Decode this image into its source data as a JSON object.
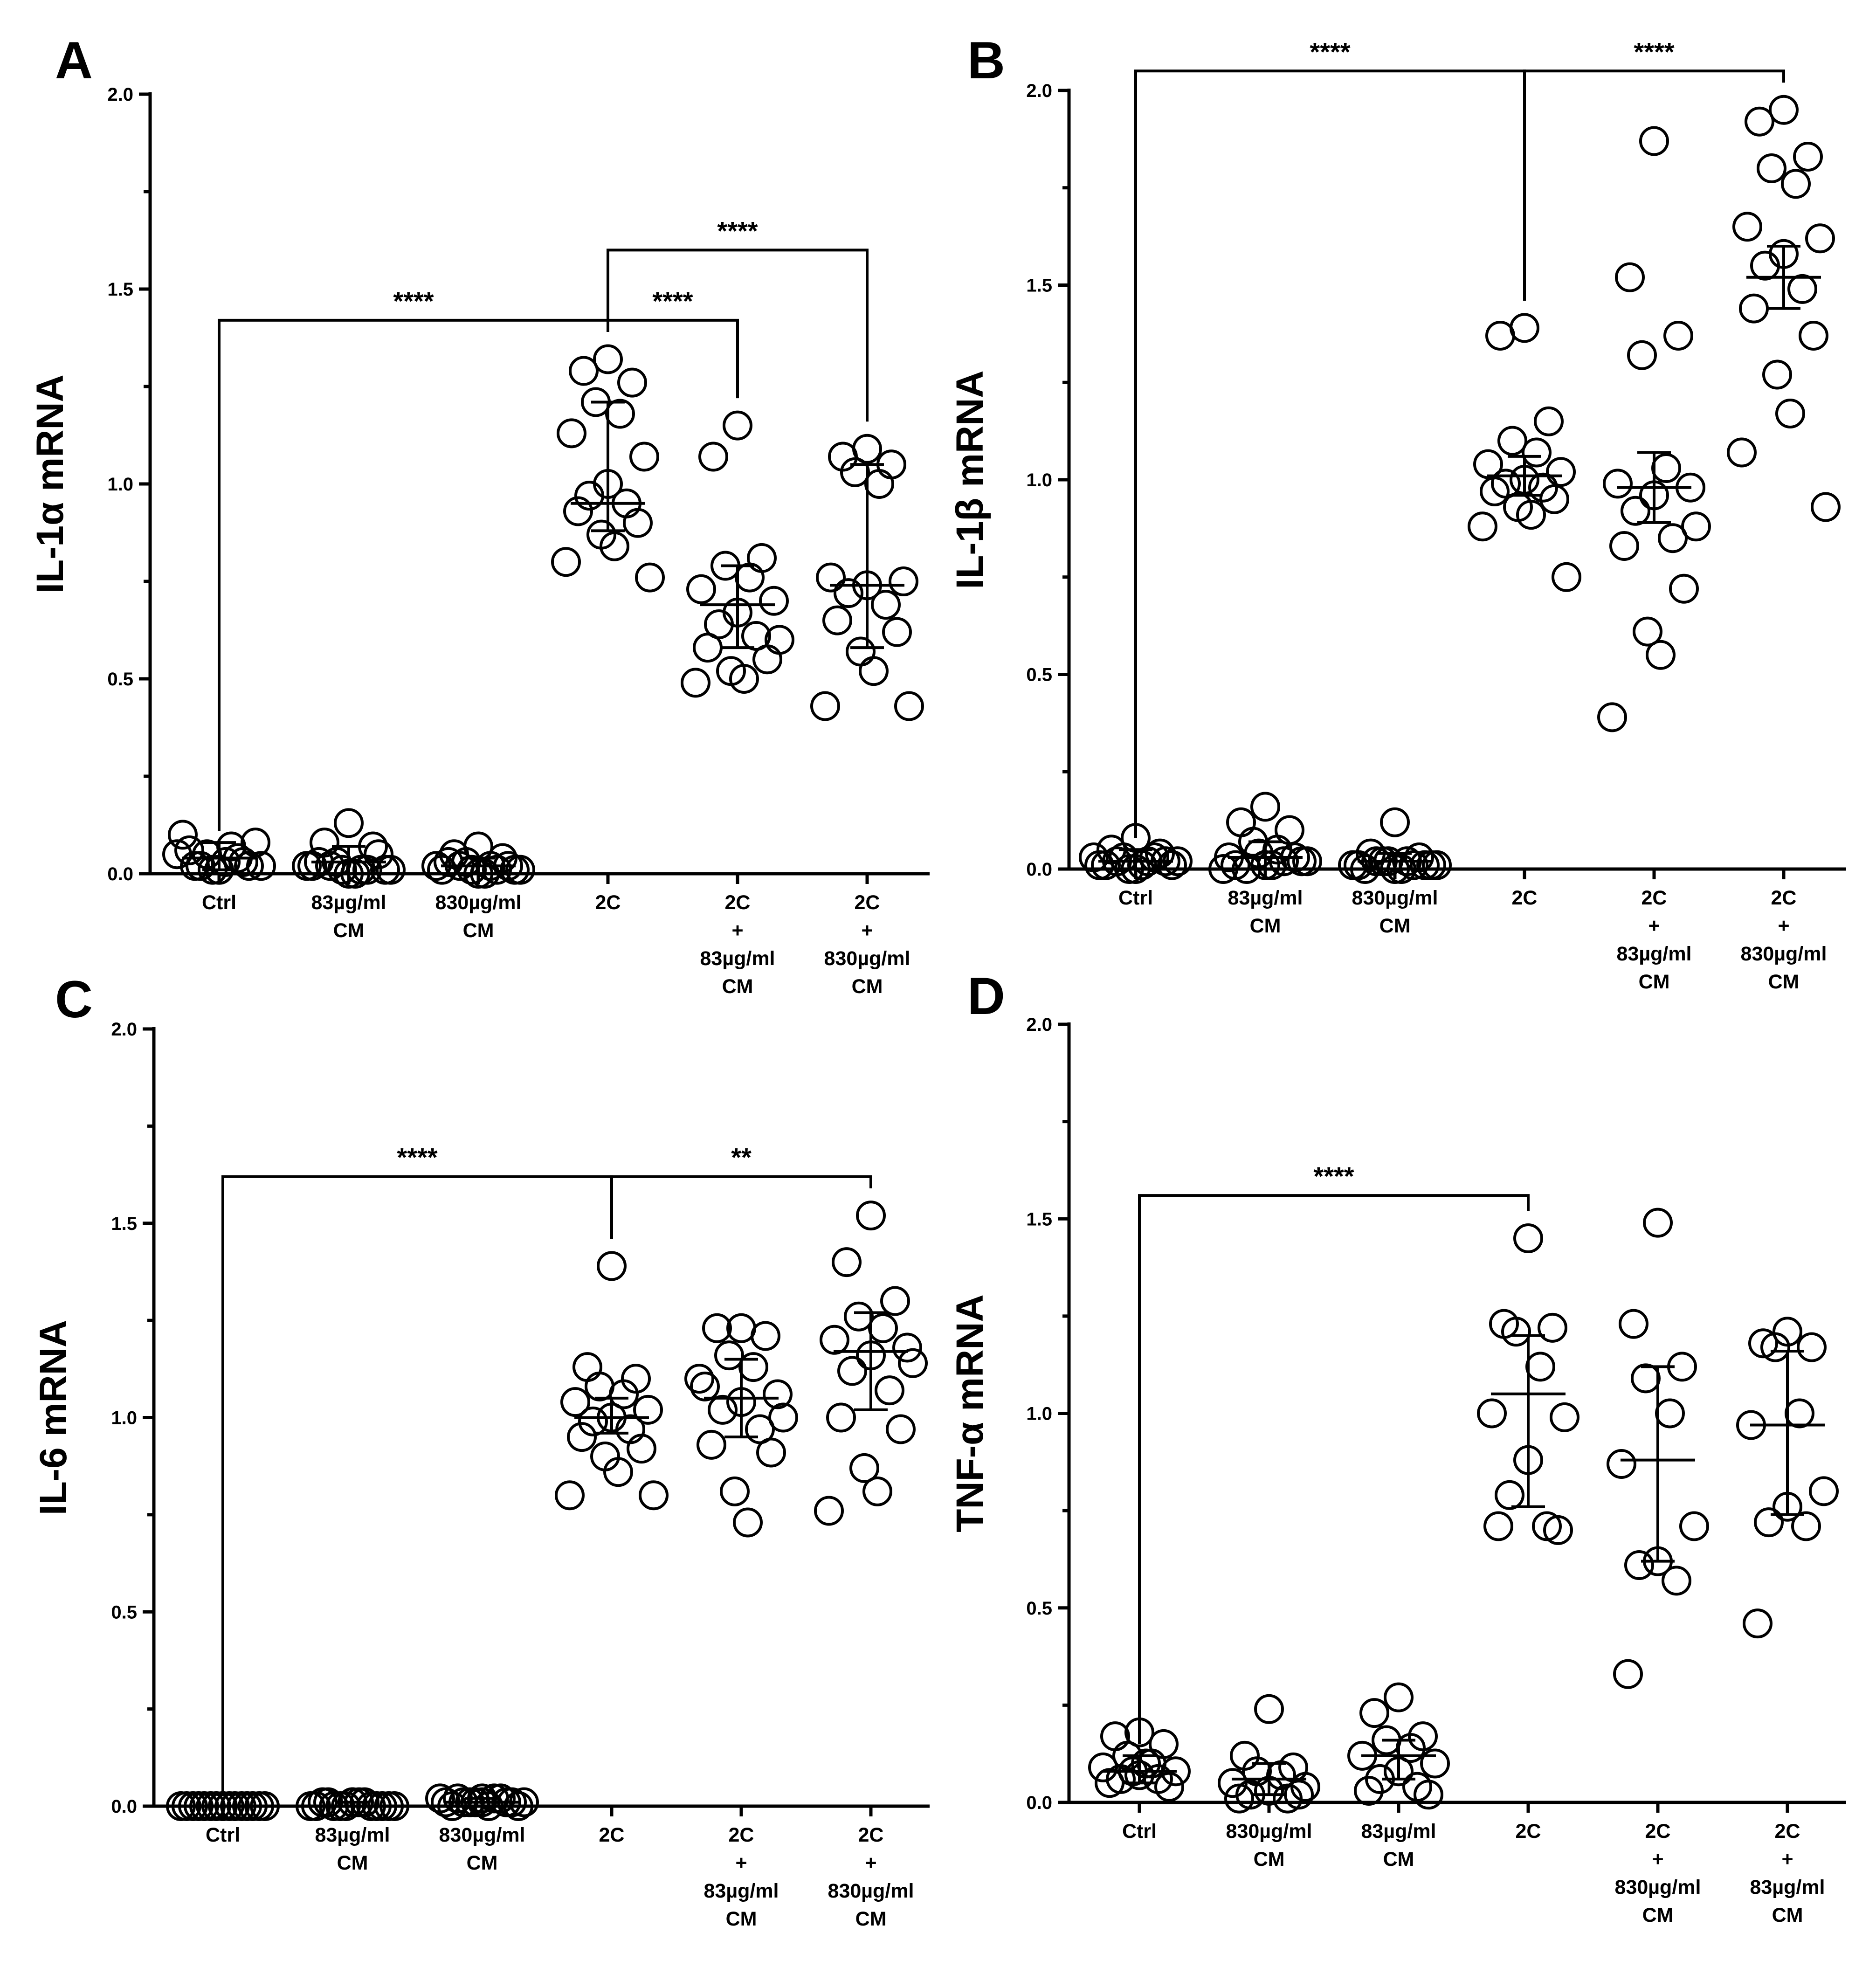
{
  "chart_data": [
    {
      "type": "scatter",
      "panel_label": "A",
      "ylabel": "IL-1α mRNA",
      "ylim": [
        0,
        2.0
      ],
      "yticks": [
        "0.0",
        "0.5",
        "1.0",
        "1.5",
        "2.0"
      ],
      "categories": [
        {
          "lines": [
            "Ctrl"
          ],
          "mean": 0.04,
          "err": [
            0.01,
            0.08
          ],
          "points": [
            0.01,
            0.02,
            0.03,
            0.05,
            0.07,
            0.1,
            0.08,
            0.01,
            0.02,
            0.04,
            0.06,
            0.02,
            0.01,
            0.03,
            0.05,
            0.02
          ]
        },
        {
          "lines": [
            "83µg/ml",
            "CM"
          ],
          "mean": 0.03,
          "err": [
            0.0,
            0.07
          ],
          "points": [
            0.13,
            0.08,
            0.07,
            0.03,
            0.01,
            0.02,
            0.01,
            0.0,
            0.02,
            0.01,
            0.03,
            0.05,
            0.01,
            0.0,
            0.02,
            0.01
          ]
        },
        {
          "lines": [
            "830µg/ml",
            "CM"
          ],
          "mean": 0.02,
          "err": [
            0.0,
            0.04
          ],
          "points": [
            0.07,
            0.05,
            0.04,
            0.03,
            0.02,
            0.01,
            0.01,
            0.0,
            0.02,
            0.01,
            0.03,
            0.02,
            0.01,
            0.0,
            0.02,
            0.01
          ]
        },
        {
          "lines": [
            "2C"
          ],
          "mean": 0.95,
          "err": [
            0.88,
            1.21
          ],
          "points": [
            1.32,
            1.29,
            1.26,
            1.21,
            1.18,
            1.13,
            1.07,
            1.0,
            0.97,
            0.95,
            0.93,
            0.9,
            0.87,
            0.84,
            0.8,
            0.76
          ]
        },
        {
          "lines": [
            "2C",
            "+",
            "83µg/ml",
            "CM"
          ],
          "mean": 0.69,
          "err": [
            0.58,
            0.79
          ],
          "points": [
            1.15,
            1.07,
            0.81,
            0.79,
            0.76,
            0.73,
            0.7,
            0.67,
            0.64,
            0.61,
            0.58,
            0.55,
            0.52,
            0.5,
            0.49,
            0.6
          ]
        },
        {
          "lines": [
            "2C",
            "+",
            "830µg/ml",
            "CM"
          ],
          "mean": 0.74,
          "err": [
            0.58,
            1.05
          ],
          "points": [
            1.09,
            1.07,
            1.05,
            1.03,
            1.0,
            0.76,
            0.75,
            0.74,
            0.72,
            0.69,
            0.65,
            0.62,
            0.57,
            0.52,
            0.43,
            0.43
          ]
        }
      ],
      "brackets": [
        {
          "from": 0,
          "to": 3,
          "y": 1.42,
          "label": "****"
        },
        {
          "from": 3,
          "to": 4,
          "y": 1.42,
          "label": "****"
        },
        {
          "from": 3,
          "to": 5,
          "y": 1.6,
          "label": "****"
        }
      ]
    },
    {
      "type": "scatter",
      "panel_label": "B",
      "ylabel": "IL-1β mRNA",
      "ylim": [
        0,
        2.0
      ],
      "yticks": [
        "0.0",
        "0.5",
        "1.0",
        "1.5",
        "2.0"
      ],
      "categories": [
        {
          "lines": [
            "Ctrl"
          ],
          "mean": 0.02,
          "err": [
            0.0,
            0.05
          ],
          "points": [
            0.08,
            0.05,
            0.04,
            0.03,
            0.02,
            0.01,
            0.01,
            0.0,
            0.02,
            0.03,
            0.01,
            0.02,
            0.0,
            0.01,
            0.03,
            0.02
          ]
        },
        {
          "lines": [
            "83µg/ml",
            "CM"
          ],
          "mean": 0.03,
          "err": [
            0.0,
            0.07
          ],
          "points": [
            0.16,
            0.12,
            0.1,
            0.07,
            0.05,
            0.03,
            0.02,
            0.01,
            0.0,
            0.02,
            0.01,
            0.03,
            0.04,
            0.01,
            0.0,
            0.02
          ]
        },
        {
          "lines": [
            "830µg/ml",
            "CM"
          ],
          "mean": 0.02,
          "err": [
            0.0,
            0.04
          ],
          "points": [
            0.12,
            0.04,
            0.03,
            0.02,
            0.02,
            0.01,
            0.01,
            0.0,
            0.02,
            0.01,
            0.0,
            0.01,
            0.02,
            0.0,
            0.01,
            0.01
          ]
        },
        {
          "lines": [
            "2C"
          ],
          "mean": 1.01,
          "err": [
            0.96,
            1.06
          ],
          "points": [
            1.39,
            1.37,
            1.15,
            1.1,
            1.07,
            1.04,
            1.02,
            1.0,
            0.99,
            0.98,
            0.97,
            0.95,
            0.93,
            0.91,
            0.88,
            0.75
          ]
        },
        {
          "lines": [
            "2C",
            "+",
            "83µg/ml",
            "CM"
          ],
          "mean": 0.98,
          "err": [
            0.89,
            1.07
          ],
          "points": [
            1.87,
            1.52,
            1.37,
            1.32,
            1.03,
            0.99,
            0.98,
            0.96,
            0.92,
            0.85,
            0.83,
            0.72,
            0.61,
            0.55,
            0.39,
            0.88
          ]
        },
        {
          "lines": [
            "2C",
            "+",
            "830µg/ml",
            "CM"
          ],
          "mean": 1.52,
          "err": [
            1.44,
            1.6
          ],
          "points": [
            1.95,
            1.92,
            1.83,
            1.8,
            1.76,
            1.65,
            1.62,
            1.58,
            1.55,
            1.49,
            1.44,
            1.37,
            1.27,
            1.17,
            1.07,
            0.93
          ]
        }
      ],
      "brackets": [
        {
          "from": 0,
          "to": 3,
          "y": 2.05,
          "label": "****"
        },
        {
          "from": 3,
          "to": 5,
          "y": 2.05,
          "label": "****"
        }
      ]
    },
    {
      "type": "scatter",
      "panel_label": "C",
      "ylabel": "IL-6 mRNA",
      "ylim": [
        0,
        2.0
      ],
      "yticks": [
        "0.0",
        "0.5",
        "1.0",
        "1.5",
        "2.0"
      ],
      "categories": [
        {
          "lines": [
            "Ctrl"
          ],
          "mean": 0.0,
          "err": [
            0.0,
            0.0
          ],
          "points": [
            0.0,
            0.0,
            0.0,
            0.0,
            0.0,
            0.0,
            0.0,
            0.0,
            0.0,
            0.0,
            0.0,
            0.0,
            0.0,
            0.0,
            0.0,
            0.0
          ]
        },
        {
          "lines": [
            "83µg/ml",
            "CM"
          ],
          "mean": 0.0,
          "err": [
            0.0,
            0.01
          ],
          "points": [
            0.01,
            0.01,
            0.0,
            0.0,
            0.01,
            0.0,
            0.0,
            0.01,
            0.0,
            0.0,
            0.01,
            0.0,
            0.0,
            0.01,
            0.0,
            0.0
          ]
        },
        {
          "lines": [
            "830µg/ml",
            "CM"
          ],
          "mean": 0.01,
          "err": [
            0.0,
            0.02
          ],
          "points": [
            0.02,
            0.02,
            0.01,
            0.01,
            0.02,
            0.01,
            0.0,
            0.01,
            0.01,
            0.02,
            0.0,
            0.01,
            0.01,
            0.0,
            0.02,
            0.01
          ]
        },
        {
          "lines": [
            "2C"
          ],
          "mean": 1.0,
          "err": [
            0.96,
            1.05
          ],
          "points": [
            1.39,
            1.13,
            1.1,
            1.08,
            1.06,
            1.04,
            1.02,
            1.0,
            0.99,
            0.97,
            0.95,
            0.92,
            0.9,
            0.86,
            0.8,
            0.8
          ]
        },
        {
          "lines": [
            "2C",
            "+",
            "83µg/ml",
            "CM"
          ],
          "mean": 1.05,
          "err": [
            0.95,
            1.15
          ],
          "points": [
            1.23,
            1.23,
            1.21,
            1.16,
            1.13,
            1.08,
            1.06,
            1.04,
            1.02,
            0.97,
            0.93,
            0.91,
            0.81,
            0.73,
            1.1,
            1.0
          ]
        },
        {
          "lines": [
            "2C",
            "+",
            "830µg/ml",
            "CM"
          ],
          "mean": 1.17,
          "err": [
            1.02,
            1.27
          ],
          "points": [
            1.52,
            1.4,
            1.3,
            1.26,
            1.23,
            1.2,
            1.18,
            1.16,
            1.12,
            1.07,
            1.0,
            0.97,
            0.87,
            0.81,
            0.76,
            1.14
          ]
        }
      ],
      "brackets": [
        {
          "from": 0,
          "to": 3,
          "y": 1.62,
          "label": "****"
        },
        {
          "from": 3,
          "to": 5,
          "y": 1.62,
          "label": "**"
        }
      ]
    },
    {
      "type": "scatter",
      "panel_label": "D",
      "ylabel": "TNF-α mRNA",
      "ylim": [
        0,
        2.0
      ],
      "yticks": [
        "0.0",
        "0.5",
        "1.0",
        "1.5",
        "2.0"
      ],
      "categories": [
        {
          "lines": [
            "Ctrl"
          ],
          "mean": 0.08,
          "err": [
            0.05,
            0.12
          ],
          "points": [
            0.18,
            0.17,
            0.15,
            0.12,
            0.1,
            0.09,
            0.08,
            0.07,
            0.06,
            0.06,
            0.05,
            0.04,
            0.08,
            0.1
          ]
        },
        {
          "lines": [
            "830µg/ml",
            "CM"
          ],
          "mean": 0.06,
          "err": [
            0.02,
            0.1
          ],
          "points": [
            0.24,
            0.12,
            0.09,
            0.08,
            0.07,
            0.05,
            0.04,
            0.03,
            0.02,
            0.01,
            0.01,
            0.02
          ]
        },
        {
          "lines": [
            "83µg/ml",
            "CM"
          ],
          "mean": 0.12,
          "err": [
            0.06,
            0.16
          ],
          "points": [
            0.27,
            0.23,
            0.17,
            0.16,
            0.14,
            0.12,
            0.1,
            0.08,
            0.06,
            0.04,
            0.03,
            0.02
          ]
        },
        {
          "lines": [
            "2C"
          ],
          "mean": 1.05,
          "err": [
            0.76,
            1.2
          ],
          "points": [
            1.45,
            1.23,
            1.22,
            1.21,
            1.12,
            1.0,
            0.99,
            0.88,
            0.79,
            0.71,
            0.71,
            0.7
          ]
        },
        {
          "lines": [
            "2C",
            "+",
            "830µg/ml",
            "CM"
          ],
          "mean": 0.88,
          "err": [
            0.62,
            1.12
          ],
          "points": [
            1.49,
            1.23,
            1.12,
            1.09,
            1.0,
            0.87,
            0.71,
            0.62,
            0.61,
            0.57,
            0.33
          ]
        },
        {
          "lines": [
            "2C",
            "+",
            "83µg/ml",
            "CM"
          ],
          "mean": 0.97,
          "err": [
            0.74,
            1.16
          ],
          "points": [
            1.21,
            1.18,
            1.17,
            1.17,
            1.0,
            0.97,
            0.8,
            0.76,
            0.72,
            0.71,
            0.46
          ]
        }
      ],
      "brackets": [
        {
          "from": 0,
          "to": 3,
          "y": 1.56,
          "label": "****"
        }
      ]
    }
  ]
}
